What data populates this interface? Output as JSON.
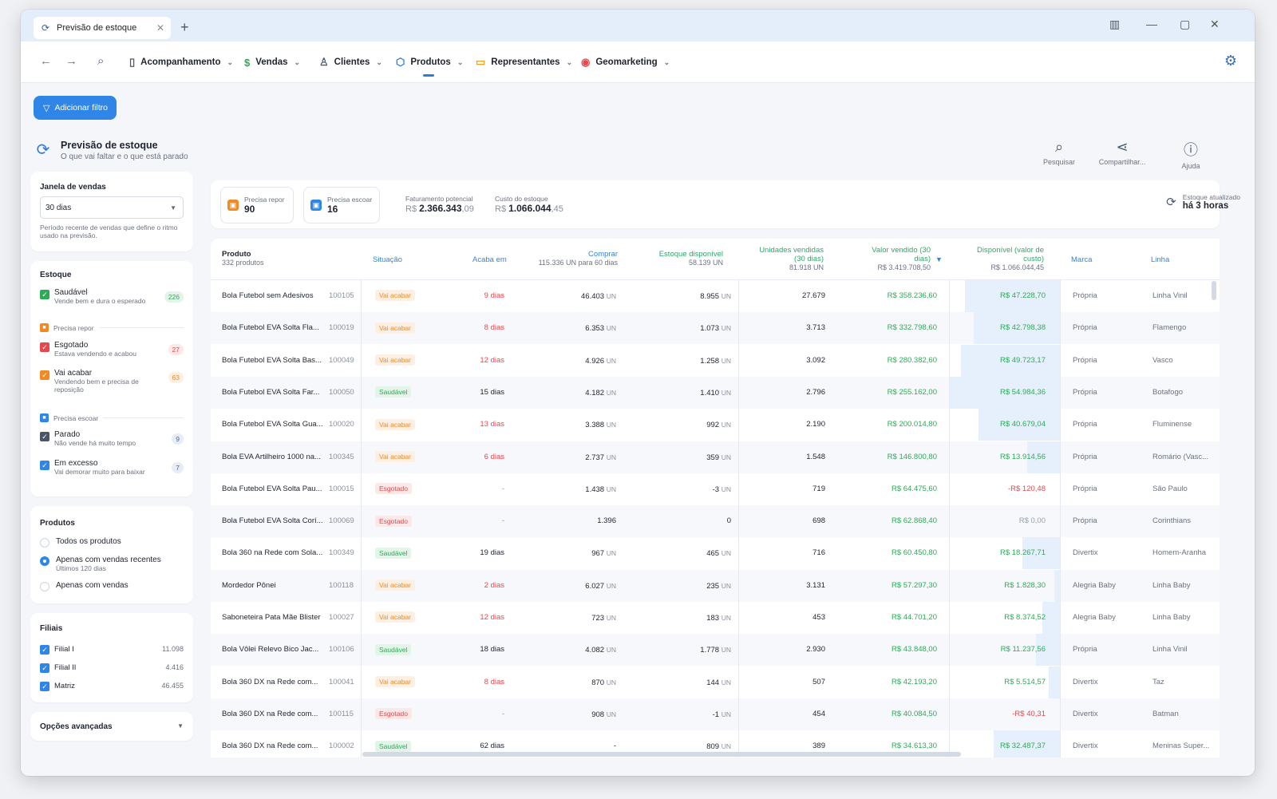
{
  "tab": {
    "title": "Previsão de estoque",
    "icon": "refresh-box-icon"
  },
  "nav": {
    "menus": [
      {
        "label": "Acompanhamento",
        "icon": "book-icon",
        "x": 136
      },
      {
        "label": "Vendas",
        "icon": "dollar-icon",
        "x": 280
      },
      {
        "label": "Clientes",
        "icon": "person-icon",
        "x": 374
      },
      {
        "label": "Produtos",
        "icon": "box-icon",
        "x": 470
      },
      {
        "label": "Representantes",
        "icon": "briefcase-icon",
        "x": 570
      },
      {
        "label": "Geomarketing",
        "icon": "map-pin-icon",
        "x": 702
      }
    ]
  },
  "filter_button": "Adicionar filtro",
  "page": {
    "title": "Previsão de estoque",
    "subtitle": "O que vai faltar e o que está parado"
  },
  "tools": {
    "search": "Pesquisar",
    "share": "Compartilhar...",
    "help": "Ajuda"
  },
  "sidebar": {
    "window": {
      "label": "Janela de vendas",
      "value": "30 dias",
      "desc": "Período recente de vendas que define o ritmo usado na previsão."
    },
    "stock": {
      "label": "Estoque",
      "healthy": {
        "name": "Saudável",
        "desc": "Vende bem e dura o esperado",
        "count": "226"
      },
      "group_restock": "Precisa repor",
      "soldout": {
        "name": "Esgotado",
        "desc": "Estava vendendo e acabou",
        "count": "27"
      },
      "ending": {
        "name": "Vai acabar",
        "desc": "Vendendo bem e precisa de reposição",
        "count": "63"
      },
      "group_clear": "Precisa escoar",
      "stopped": {
        "name": "Parado",
        "desc": "Não vende há muito tempo",
        "count": "9"
      },
      "excess": {
        "name": "Em excesso",
        "desc": "Vai demorar muito para baixar",
        "count": "7"
      }
    },
    "products": {
      "label": "Produtos",
      "all": "Todos os produtos",
      "recent": "Apenas com vendas recentes",
      "recent_desc": "Últimos 120 dias",
      "with_sales": "Apenas com vendas"
    },
    "branches": {
      "label": "Filiais",
      "items": [
        {
          "name": "Filial I",
          "value": "11.098"
        },
        {
          "name": "Filial II",
          "value": "4.416"
        },
        {
          "name": "Matriz",
          "value": "46.455"
        }
      ]
    },
    "advanced": "Opções avançadas"
  },
  "kpis": {
    "restock": {
      "label": "Precisa repor",
      "value": "90"
    },
    "clear": {
      "label": "Precisa escoar",
      "value": "16"
    },
    "revenue": {
      "label": "Faturamento potencial",
      "prefix": "R$ ",
      "main": "2.366.343",
      "cents": ",09"
    },
    "cost": {
      "label": "Custo do estoque",
      "prefix": "R$ ",
      "main": "1.066.044",
      "cents": ",45"
    },
    "updated": {
      "label": "Estoque atualizado",
      "value": "há 3 horas"
    }
  },
  "table": {
    "headers": {
      "product": "Produto",
      "product_sub": "332 produtos",
      "status": "Situação",
      "ends": "Acaba em",
      "buy": "Comprar",
      "buy_sub": "115.336 UN para 60 dias",
      "stock": "Estoque disponível",
      "stock_sub": "58.139 UN",
      "units": "Unidades vendidas (30 dias)",
      "units_sub": "81.918 UN",
      "sold": "Valor vendido (30 dias)",
      "sold_sub": "R$ 3.419.708,50",
      "avail": "Disponível (valor de custo)",
      "avail_sub": "R$ 1.066.044,45",
      "brand": "Marca",
      "line": "Linha"
    },
    "unit": "UN",
    "rows": [
      {
        "name": "Bola Futebol sem Adesivos",
        "code": "100105",
        "status": "Vai acabar",
        "ends": "9 dias",
        "buy": "46.403",
        "buy_un": true,
        "stock": "8.955",
        "stock_un": true,
        "units": "27.679",
        "sold": "R$ 358.236,60",
        "avail": "R$ 47.228,70",
        "avail_neg": false,
        "brand": "Própria",
        "line": "Linha Vinil",
        "bar": 0.86
      },
      {
        "name": "Bola Futebol EVA Solta Fla...",
        "code": "100019",
        "status": "Vai acabar",
        "ends": "8 dias",
        "buy": "6.353",
        "buy_un": true,
        "stock": "1.073",
        "stock_un": true,
        "units": "3.713",
        "sold": "R$ 332.798,60",
        "avail": "R$ 42.798,38",
        "avail_neg": false,
        "brand": "Própria",
        "line": "Flamengo",
        "bar": 0.78
      },
      {
        "name": "Bola Futebol EVA Solta Bas...",
        "code": "100049",
        "status": "Vai acabar",
        "ends": "12 dias",
        "buy": "4.926",
        "buy_un": true,
        "stock": "1.258",
        "stock_un": true,
        "units": "3.092",
        "sold": "R$ 280.382,60",
        "avail": "R$ 49.723,17",
        "avail_neg": false,
        "brand": "Própria",
        "line": "Vasco",
        "bar": 0.9
      },
      {
        "name": "Bola Futebol EVA Solta Far...",
        "code": "100050",
        "status": "Saudável",
        "ends": "15 dias",
        "buy": "4.182",
        "buy_un": true,
        "stock": "1.410",
        "stock_un": true,
        "units": "2.796",
        "sold": "R$ 255.162,00",
        "avail": "R$ 54.984,36",
        "avail_neg": false,
        "brand": "Própria",
        "line": "Botafogo",
        "bar": 1.0
      },
      {
        "name": "Bola Futebol EVA Solta Gua...",
        "code": "100020",
        "status": "Vai acabar",
        "ends": "13 dias",
        "buy": "3.388",
        "buy_un": true,
        "stock": "992",
        "stock_un": true,
        "units": "2.190",
        "sold": "R$ 200.014,80",
        "avail": "R$ 40.679,04",
        "avail_neg": false,
        "brand": "Própria",
        "line": "Fluminense",
        "bar": 0.74
      },
      {
        "name": "Bola EVA Artilheiro 1000 na...",
        "code": "100345",
        "status": "Vai acabar",
        "ends": "6 dias",
        "buy": "2.737",
        "buy_un": true,
        "stock": "359",
        "stock_un": true,
        "units": "1.548",
        "sold": "R$ 146.800,80",
        "avail": "R$ 13.914,56",
        "avail_neg": false,
        "brand": "Própria",
        "line": "Romário (Vasc...",
        "bar": 0.3
      },
      {
        "name": "Bola Futebol EVA Solta Pau...",
        "code": "100015",
        "status": "Esgotado",
        "ends": "-",
        "buy": "1.438",
        "buy_un": true,
        "stock": "-3",
        "stock_un": true,
        "units": "719",
        "sold": "R$ 64.475,60",
        "avail": "-R$ 120,48",
        "avail_neg": true,
        "brand": "Própria",
        "line": "São Paulo",
        "bar": 0
      },
      {
        "name": "Bola Futebol EVA Solta Corí...",
        "code": "100069",
        "status": "Esgotado",
        "ends": "-",
        "buy": "1.396",
        "buy_un": false,
        "stock": "0",
        "stock_un": false,
        "units": "698",
        "sold": "R$ 62.868,40",
        "avail": "R$ 0,00",
        "avail_neg": false,
        "brand": "Própria",
        "line": "Corinthians",
        "bar": 0
      },
      {
        "name": "Bola 360 na Rede com Sola...",
        "code": "100349",
        "status": "Saudável",
        "ends": "19 dias",
        "buy": "967",
        "buy_un": true,
        "stock": "465",
        "stock_un": true,
        "units": "716",
        "sold": "R$ 60.450,80",
        "avail": "R$ 18.267,71",
        "avail_neg": false,
        "brand": "Divertix",
        "line": "Homem-Aranha",
        "bar": 0.34
      },
      {
        "name": "Mordedor Pônei",
        "code": "100118",
        "status": "Vai acabar",
        "ends": "2 dias",
        "buy": "6.027",
        "buy_un": true,
        "stock": "235",
        "stock_un": true,
        "units": "3.131",
        "sold": "R$ 57.297,30",
        "avail": "R$ 1.828,30",
        "avail_neg": false,
        "brand": "Alegria Baby",
        "line": "Linha Baby",
        "bar": 0.05
      },
      {
        "name": "Saboneteira Pata Mãe Blister",
        "code": "100027",
        "status": "Vai acabar",
        "ends": "12 dias",
        "buy": "723",
        "buy_un": true,
        "stock": "183",
        "stock_un": true,
        "units": "453",
        "sold": "R$ 44.701,20",
        "avail": "R$ 8.374,52",
        "avail_neg": false,
        "brand": "Alegria Baby",
        "line": "Linha Baby",
        "bar": 0.16
      },
      {
        "name": "Bola Vôlei Relevo Bico Jac...",
        "code": "100106",
        "status": "Saudável",
        "ends": "18 dias",
        "buy": "4.082",
        "buy_un": true,
        "stock": "1.778",
        "stock_un": true,
        "units": "2.930",
        "sold": "R$ 43.848,00",
        "avail": "R$ 11.237,56",
        "avail_neg": false,
        "brand": "Própria",
        "line": "Linha Vinil",
        "bar": 0.22
      },
      {
        "name": "Bola 360 DX na Rede com...",
        "code": "100041",
        "status": "Vai acabar",
        "ends": "8 dias",
        "buy": "870",
        "buy_un": true,
        "stock": "144",
        "stock_un": true,
        "units": "507",
        "sold": "R$ 42.193,20",
        "avail": "R$ 5.514,57",
        "avail_neg": false,
        "brand": "Divertix",
        "line": "Taz",
        "bar": 0.1
      },
      {
        "name": "Bola 360 DX na Rede com...",
        "code": "100115",
        "status": "Esgotado",
        "ends": "-",
        "buy": "908",
        "buy_un": true,
        "stock": "-1",
        "stock_un": true,
        "units": "454",
        "sold": "R$ 40.084,50",
        "avail": "-R$ 40,31",
        "avail_neg": true,
        "brand": "Divertix",
        "line": "Batman",
        "bar": 0
      },
      {
        "name": "Bola 360 DX na Rede com...",
        "code": "100002",
        "status": "Saudável",
        "ends": "62 dias",
        "buy": "-",
        "buy_un": false,
        "stock": "809",
        "stock_un": true,
        "units": "389",
        "sold": "R$ 34.613,30",
        "avail": "R$ 32.487,37",
        "avail_neg": false,
        "brand": "Divertix",
        "line": "Meninas Super...",
        "bar": 0.6
      }
    ]
  },
  "colors": {
    "accent": "#2f86e6",
    "green": "#2eaa57",
    "red": "#e5484d",
    "orange": "#f08a24",
    "teal_head": "#2ea86a",
    "blue_head": "#2f86e6"
  }
}
